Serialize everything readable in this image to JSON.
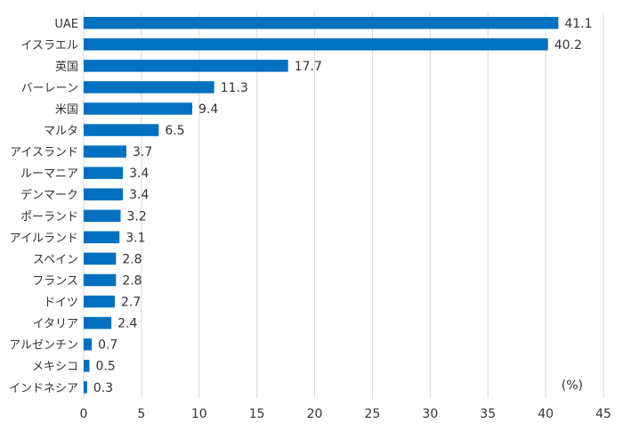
{
  "chart_data": {
    "type": "bar",
    "orientation": "horizontal",
    "categories": [
      "UAE",
      "イスラエル",
      "英国",
      "バーレーン",
      "米国",
      "マルタ",
      "アイスランド",
      "ルーマニア",
      "デンマーク",
      "ポーランド",
      "アイルランド",
      "スペイン",
      "フランス",
      "ドイツ",
      "イタリア",
      "アルゼンチン",
      "メキシコ",
      "インドネシア"
    ],
    "values": [
      41.1,
      40.2,
      17.7,
      11.3,
      9.4,
      6.5,
      3.7,
      3.4,
      3.4,
      3.2,
      3.1,
      2.8,
      2.8,
      2.7,
      2.4,
      0.7,
      0.5,
      0.3
    ],
    "value_labels": [
      "41.1",
      "40.2",
      "17.7",
      "11.3",
      "9.4",
      "6.5",
      "3.7",
      "3.4",
      "3.4",
      "3.2",
      "3.1",
      "2.8",
      "2.8",
      "2.7",
      "2.4",
      "0.7",
      "0.5",
      "0.3"
    ],
    "xlim": [
      0,
      45
    ],
    "x_ticks": [
      "0",
      "5",
      "10",
      "15",
      "20",
      "25",
      "30",
      "35",
      "40",
      "45"
    ],
    "unit_label": "(%)",
    "grid": "vertical",
    "bar_color": "#0070C0",
    "grid_color": "#D9D9D9"
  }
}
